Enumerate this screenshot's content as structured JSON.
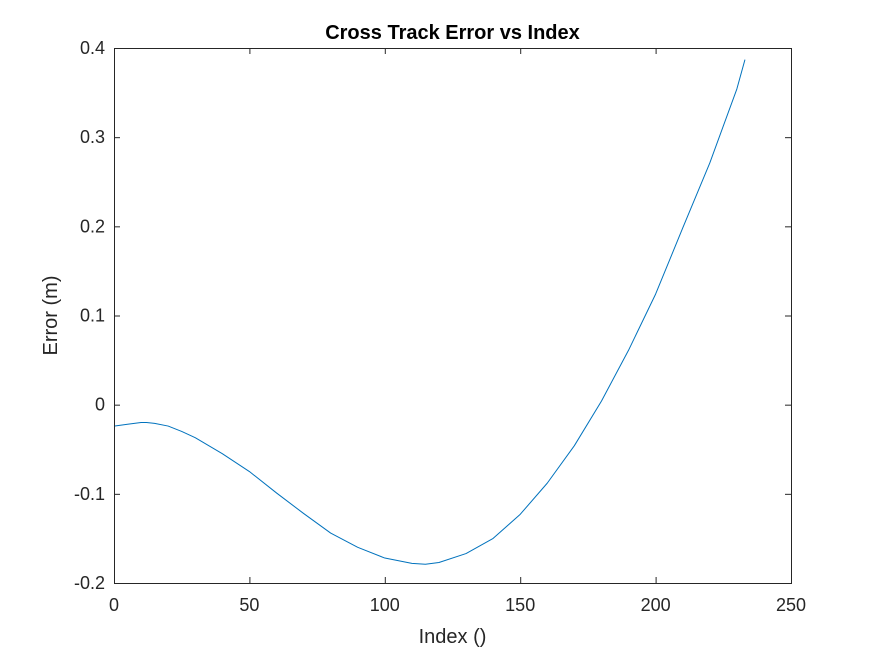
{
  "chart_data": {
    "type": "line",
    "title": "Cross Track Error vs Index",
    "xlabel": "Index ()",
    "ylabel": "Error (m)",
    "xlim": [
      0,
      250
    ],
    "ylim": [
      -0.2,
      0.4
    ],
    "xticks": [
      0,
      50,
      100,
      150,
      200,
      250
    ],
    "yticks": [
      -0.2,
      -0.1,
      0,
      0.1,
      0.2,
      0.3,
      0.4
    ],
    "xtick_labels": [
      "0",
      "50",
      "100",
      "150",
      "200",
      "250"
    ],
    "ytick_labels": [
      "-0.2",
      "-0.1",
      "0",
      "0.1",
      "0.2",
      "0.3",
      "0.4"
    ],
    "grid": false,
    "box": true,
    "series": [
      {
        "color": "#0072BD",
        "x": [
          0,
          5,
          10,
          12,
          15,
          20,
          25,
          30,
          40,
          50,
          60,
          70,
          80,
          90,
          100,
          110,
          115,
          120,
          130,
          140,
          150,
          160,
          170,
          180,
          190,
          200,
          210,
          220,
          230,
          233
        ],
        "y": [
          -0.024,
          -0.022,
          -0.02,
          -0.02,
          -0.021,
          -0.024,
          -0.03,
          -0.037,
          -0.055,
          -0.075,
          -0.099,
          -0.122,
          -0.144,
          -0.16,
          -0.172,
          -0.178,
          -0.179,
          -0.177,
          -0.167,
          -0.15,
          -0.123,
          -0.088,
          -0.046,
          0.004,
          0.061,
          0.124,
          0.198,
          0.271,
          0.354,
          0.387
        ]
      }
    ]
  }
}
